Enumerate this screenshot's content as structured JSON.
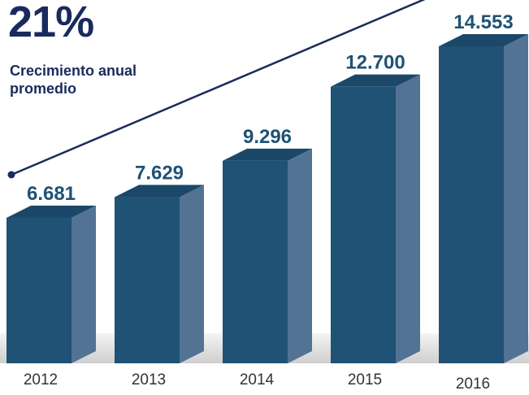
{
  "chart_data": {
    "type": "bar3d",
    "title": "21%",
    "subtitle": "Crecimiento anual promedio",
    "categories": [
      "2012",
      "2013",
      "2014",
      "2015",
      "2016"
    ],
    "values": [
      6681,
      7629,
      9296,
      12700,
      14553
    ],
    "value_labels": [
      "6.681",
      "7.629",
      "9.296",
      "12.700",
      "14.553"
    ],
    "color": "#1f5275"
  }
}
